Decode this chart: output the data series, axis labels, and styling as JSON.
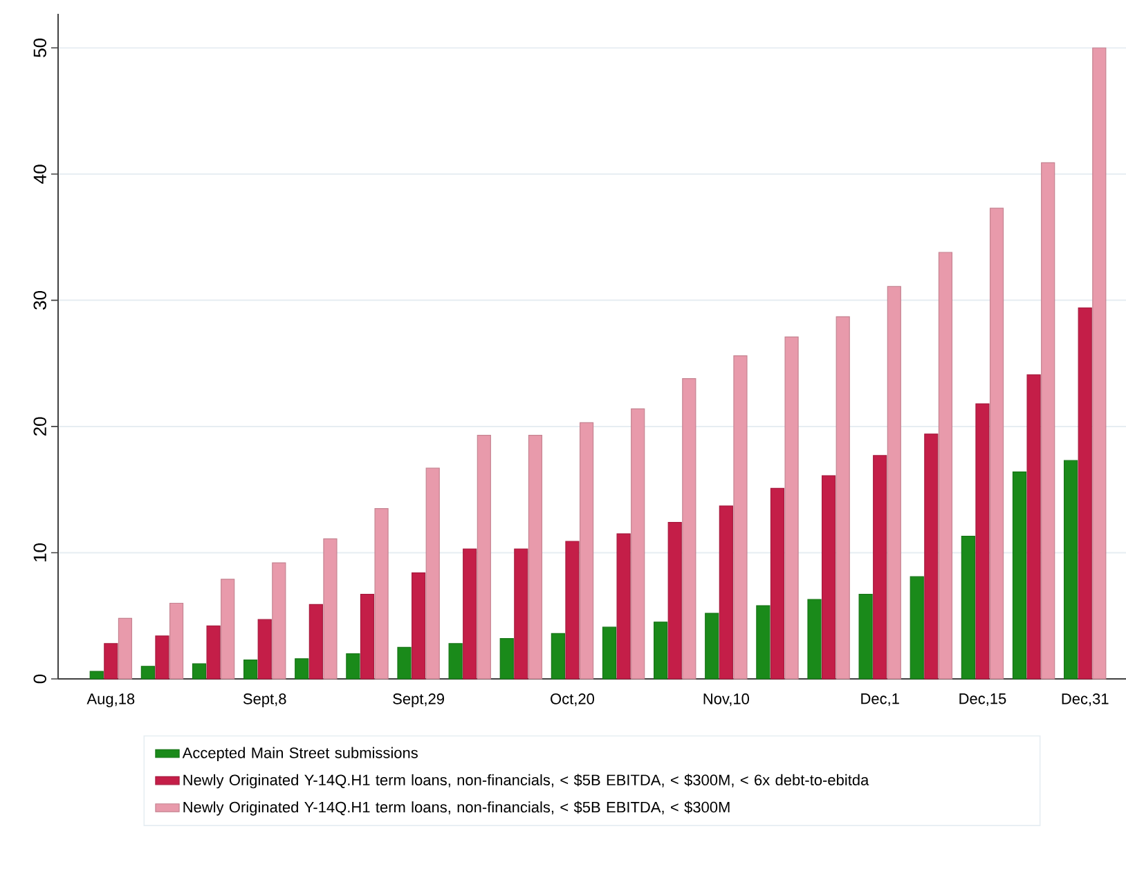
{
  "chart_data": {
    "type": "bar",
    "categories": [
      "Aug,18",
      null,
      null,
      "Sept,8",
      null,
      null,
      "Sept,29",
      null,
      null,
      "Oct,20",
      null,
      null,
      "Nov,10",
      null,
      null,
      "Dec,1",
      null,
      "Dec,15",
      null,
      "Dec,31"
    ],
    "series": [
      {
        "name": "Accepted Main Street submissions",
        "color": "#1a8a1a",
        "values": [
          0.6,
          1.0,
          1.2,
          1.5,
          1.6,
          2.0,
          2.5,
          2.8,
          3.2,
          3.6,
          4.1,
          4.5,
          5.2,
          5.8,
          6.3,
          6.7,
          8.1,
          11.3,
          16.4,
          17.3
        ]
      },
      {
        "name": "Newly Originated Y-14Q.H1 term loans, non-financials, < $5B EBITDA, < $300M, < 6x debt-to-ebitda",
        "color": "#c41e48",
        "values": [
          2.8,
          3.4,
          4.2,
          4.7,
          5.9,
          6.7,
          8.4,
          10.3,
          10.3,
          10.9,
          11.5,
          12.4,
          13.7,
          15.1,
          16.1,
          17.7,
          19.4,
          21.8,
          24.1,
          29.4
        ]
      },
      {
        "name": "Newly Originated Y-14Q.H1 term loans, non-financials, < $5B EBITDA, < $300M",
        "color": "#e89aab",
        "values": [
          4.8,
          6.0,
          7.9,
          9.2,
          11.1,
          13.5,
          16.7,
          19.3,
          19.3,
          20.3,
          21.4,
          23.8,
          25.6,
          27.1,
          28.7,
          31.1,
          33.8,
          37.3,
          40.9,
          50.0
        ]
      }
    ],
    "ylim": [
      0,
      52.7
    ],
    "yticks": [
      0,
      10,
      20,
      30,
      40,
      50
    ],
    "grid": "y",
    "legend": "bottom"
  }
}
